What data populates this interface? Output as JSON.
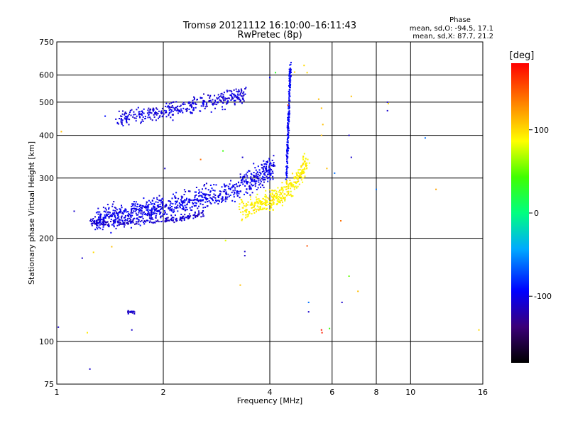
{
  "chart_data": {
    "type": "scatter",
    "title": "Tromsø 20121112 16:10:00–16:11:43",
    "subtitle": "RwPretec (8p)",
    "xlabel": "Frequency [MHz]",
    "ylabel": "Stationary phase Virtual Height [km]",
    "x_scale": "log",
    "y_scale": "log",
    "xlim": [
      1,
      16
    ],
    "ylim": [
      75,
      750
    ],
    "x_ticks": [
      "1",
      "2",
      "4",
      "6",
      "8",
      "10",
      "16"
    ],
    "y_ticks": [
      "750",
      "600",
      "500",
      "400",
      "300",
      "200",
      "100",
      "75"
    ],
    "grid": true,
    "stats": {
      "heading": "Phase",
      "o_line": "mean, sd,O: -94.5, 17.1",
      "x_line": "mean, sd,X:  87.7, 21.2"
    },
    "colorbar": {
      "label": "[deg]",
      "range": [
        -180,
        180
      ],
      "ticks": [
        "100",
        "0",
        "-100"
      ]
    },
    "traces": [
      {
        "kind": "band",
        "x": [
          1.5,
          1.6,
          1.8,
          2.0,
          2.2,
          2.5,
          2.8,
          3.1,
          3.4
        ],
        "y": [
          450,
          455,
          460,
          468,
          478,
          492,
          505,
          516,
          526
        ],
        "height_spread": 0.035,
        "freq_spread": 0.015,
        "count": 380,
        "phase": -105
      },
      {
        "kind": "band",
        "x": [
          1.3,
          1.4,
          1.6,
          1.8,
          2.0,
          2.3,
          2.6,
          3.0,
          3.4,
          3.8,
          4.1
        ],
        "y": [
          228,
          230,
          234,
          240,
          246,
          253,
          262,
          274,
          288,
          305,
          322
        ],
        "height_spread": 0.05,
        "freq_spread": 0.012,
        "count": 900,
        "phase": -100
      },
      {
        "kind": "band",
        "x": [
          1.25,
          1.3,
          1.6,
          2.0,
          2.3,
          2.6
        ],
        "y": [
          224,
          222,
          222,
          225,
          230,
          236
        ],
        "height_spread": 0.012,
        "freq_spread": 0.01,
        "count": 170,
        "phase": -110
      },
      {
        "kind": "band",
        "x": [
          3.3,
          3.7,
          4.0,
          4.3,
          4.6,
          4.9,
          5.1
        ],
        "y": [
          244,
          250,
          258,
          268,
          284,
          308,
          338
        ],
        "height_spread": 0.045,
        "freq_spread": 0.012,
        "count": 360,
        "phase": 92
      },
      {
        "kind": "band",
        "x": [
          4.45,
          4.5,
          4.52,
          4.55,
          4.58
        ],
        "y": [
          300,
          380,
          460,
          560,
          640
        ],
        "height_spread": 0.03,
        "freq_spread": 0.004,
        "count": 200,
        "phase": -95
      },
      {
        "kind": "band",
        "x": [
          1.58,
          1.62,
          1.66
        ],
        "y": [
          121,
          122,
          121
        ],
        "height_spread": 0.01,
        "freq_spread": 0.008,
        "count": 18,
        "phase": -110
      }
    ],
    "noise_points": [
      {
        "x": 1.03,
        "y": 410,
        "phase": 110
      },
      {
        "x": 1.12,
        "y": 240,
        "phase": -110
      },
      {
        "x": 1.18,
        "y": 175,
        "phase": -110
      },
      {
        "x": 1.22,
        "y": 106,
        "phase": 95
      },
      {
        "x": 1.24,
        "y": 83,
        "phase": -110
      },
      {
        "x": 1.27,
        "y": 182,
        "phase": 100
      },
      {
        "x": 1.37,
        "y": 455,
        "phase": -90
      },
      {
        "x": 1.43,
        "y": 189,
        "phase": 110
      },
      {
        "x": 1.63,
        "y": 108,
        "phase": -110
      },
      {
        "x": 1.01,
        "y": 110,
        "phase": -110
      },
      {
        "x": 2.02,
        "y": 320,
        "phase": -110
      },
      {
        "x": 2.55,
        "y": 340,
        "phase": 140
      },
      {
        "x": 2.95,
        "y": 360,
        "phase": 40
      },
      {
        "x": 3.0,
        "y": 197,
        "phase": 80
      },
      {
        "x": 3.3,
        "y": 146,
        "phase": 110
      },
      {
        "x": 3.4,
        "y": 183,
        "phase": -110
      },
      {
        "x": 3.4,
        "y": 178,
        "phase": -110
      },
      {
        "x": 3.35,
        "y": 345,
        "phase": -110
      },
      {
        "x": 4.0,
        "y": 590,
        "phase": -95
      },
      {
        "x": 4.15,
        "y": 610,
        "phase": 30
      },
      {
        "x": 4.7,
        "y": 612,
        "phase": 100
      },
      {
        "x": 4.5,
        "y": 490,
        "phase": 150
      },
      {
        "x": 5.0,
        "y": 640,
        "phase": 100
      },
      {
        "x": 5.1,
        "y": 610,
        "phase": 100
      },
      {
        "x": 5.5,
        "y": 510,
        "phase": 110
      },
      {
        "x": 5.6,
        "y": 480,
        "phase": 110
      },
      {
        "x": 5.65,
        "y": 430,
        "phase": 110
      },
      {
        "x": 5.6,
        "y": 400,
        "phase": 110
      },
      {
        "x": 5.8,
        "y": 320,
        "phase": 110
      },
      {
        "x": 5.1,
        "y": 190,
        "phase": 150
      },
      {
        "x": 5.15,
        "y": 130,
        "phase": -60
      },
      {
        "x": 5.15,
        "y": 122,
        "phase": -110
      },
      {
        "x": 5.6,
        "y": 108,
        "phase": 170
      },
      {
        "x": 5.62,
        "y": 106,
        "phase": 170
      },
      {
        "x": 5.9,
        "y": 109,
        "phase": 40
      },
      {
        "x": 6.1,
        "y": 310,
        "phase": -60
      },
      {
        "x": 6.35,
        "y": 225,
        "phase": 140
      },
      {
        "x": 6.4,
        "y": 130,
        "phase": -110
      },
      {
        "x": 6.7,
        "y": 400,
        "phase": -110
      },
      {
        "x": 6.8,
        "y": 520,
        "phase": 110
      },
      {
        "x": 6.8,
        "y": 345,
        "phase": -110
      },
      {
        "x": 6.7,
        "y": 155,
        "phase": 50
      },
      {
        "x": 7.1,
        "y": 140,
        "phase": 110
      },
      {
        "x": 8.0,
        "y": 278,
        "phase": -60
      },
      {
        "x": 8.6,
        "y": 500,
        "phase": -110
      },
      {
        "x": 8.6,
        "y": 472,
        "phase": -110
      },
      {
        "x": 8.65,
        "y": 495,
        "phase": 100
      },
      {
        "x": 11.0,
        "y": 393,
        "phase": -60
      },
      {
        "x": 11.8,
        "y": 278,
        "phase": 120
      },
      {
        "x": 15.6,
        "y": 108,
        "phase": 100
      }
    ]
  }
}
